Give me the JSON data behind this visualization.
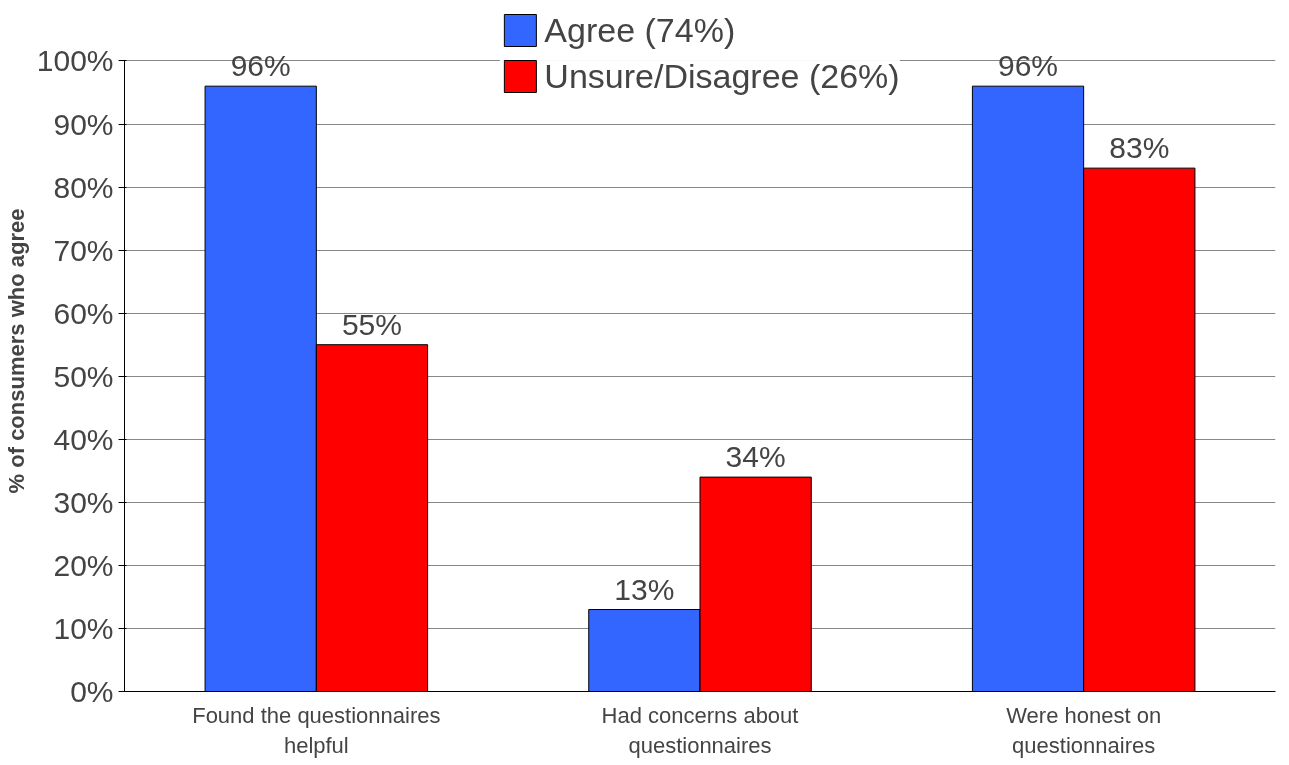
{
  "chart_data": {
    "type": "bar",
    "ylabel": "% of consumers who agree",
    "categories": [
      "Found the questionnaires helpful",
      "Had concerns about questionnaires",
      "Were honest on questionnaires"
    ],
    "series": [
      {
        "name": "Agree (74%)",
        "color": "#3366ff",
        "values": [
          96,
          13,
          96
        ],
        "value_labels": [
          "96%",
          "13%",
          "96%"
        ]
      },
      {
        "name": "Unsure/Disagree (26%)",
        "color": "#ff0000",
        "values": [
          55,
          34,
          83
        ],
        "value_labels": [
          "55%",
          "34%",
          "83%"
        ]
      }
    ],
    "ylim": [
      0,
      100
    ],
    "yticks": [
      {
        "value": 0,
        "label": "0%"
      },
      {
        "value": 10,
        "label": "10%"
      },
      {
        "value": 20,
        "label": "20%"
      },
      {
        "value": 30,
        "label": "30%"
      },
      {
        "value": 40,
        "label": "40%"
      },
      {
        "value": 50,
        "label": "50%"
      },
      {
        "value": 60,
        "label": "60%"
      },
      {
        "value": 70,
        "label": "70%"
      },
      {
        "value": 80,
        "label": "80%"
      },
      {
        "value": 90,
        "label": "90%"
      },
      {
        "value": 100,
        "label": "100%"
      }
    ],
    "grid": "y",
    "legend": "top"
  }
}
